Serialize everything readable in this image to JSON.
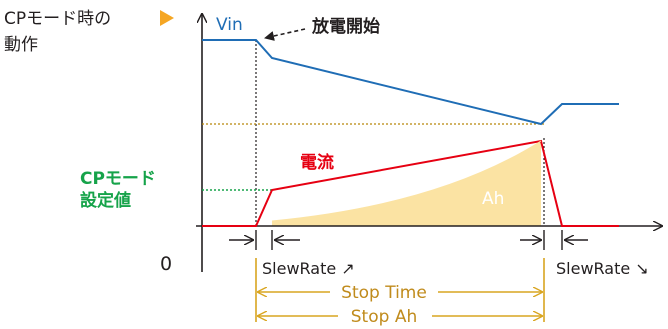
{
  "mode_label": {
    "line1": "CPモード時の",
    "line2": "動作"
  },
  "vin_label": "Vin",
  "discharge_start_label": "放電開始",
  "current_label": "電流",
  "cp_setting_label": {
    "line1": "CPモード",
    "line2": "設定値"
  },
  "ah_label": "Ah",
  "origin_label": "0",
  "slew_rate_start_label": "SlewRate ↗",
  "slew_rate_end_label": "SlewRate ↘",
  "stop_time_label": "Stop Time",
  "stop_ah_label": "Stop Ah",
  "colors": {
    "vin": "#1f6db5",
    "current": "#e60012",
    "cp_setting": "#16a34a",
    "ah_fill": "#fbe3a3",
    "stop_markers": "#d9a520",
    "axes": "#231f20",
    "mode_pointer": "#f5a623"
  }
}
